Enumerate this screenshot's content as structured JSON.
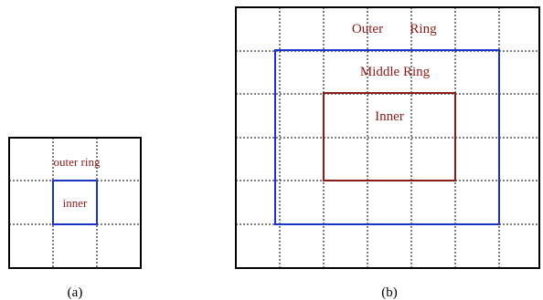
{
  "colors": {
    "outer_frame": "#000000",
    "grid": "#000000",
    "middle_ring": "#1a33cc",
    "inner_region": "#8b1a1a",
    "label_text": "#8b1a1a",
    "background": "#ffffff"
  },
  "panels": [
    {
      "id": "a",
      "caption": "(a)",
      "grid": {
        "columns": 3,
        "rows": 3
      },
      "labels": {
        "outer": "outer ring",
        "inner": "inner"
      }
    },
    {
      "id": "b",
      "caption": "(b)",
      "grid": {
        "columns": 7,
        "rows": 6
      },
      "labels": {
        "outer_word1": "Outer",
        "outer_word2": "Ring",
        "middle": "Middle Ring",
        "inner": "Inner"
      }
    }
  ]
}
